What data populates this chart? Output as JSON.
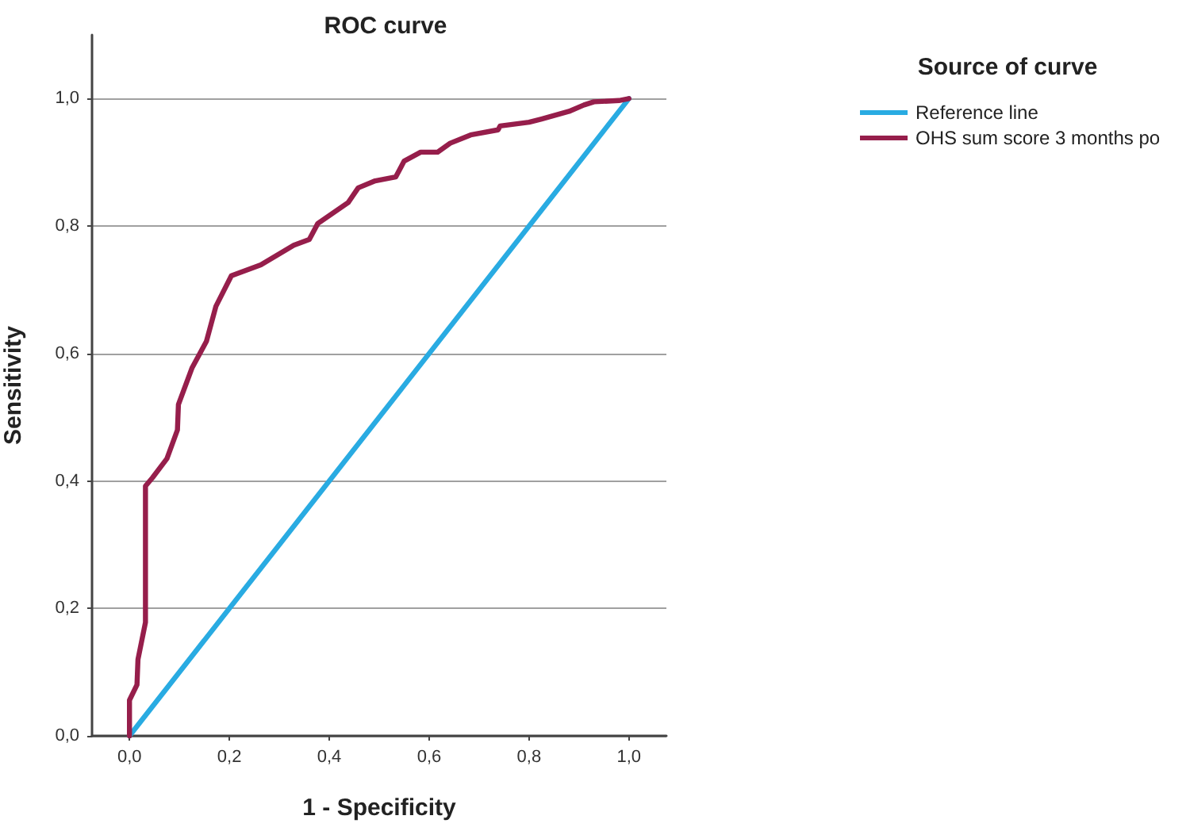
{
  "chart_data": {
    "type": "line",
    "title": "ROC curve",
    "xlabel": "1 - Specificity",
    "ylabel": "Sensitivity",
    "legend_title": "Source of curve",
    "legend": "top right",
    "grid": "y",
    "marker": "none",
    "line_style": "solid",
    "xlim": [
      -0.075,
      1.075
    ],
    "ylim": [
      0,
      1.1
    ],
    "xticks": [
      {
        "value": 0,
        "label": "0,0"
      },
      {
        "value": 0.2,
        "label": "0,2"
      },
      {
        "value": 0.4,
        "label": "0,4"
      },
      {
        "value": 0.6,
        "label": "0,6"
      },
      {
        "value": 0.8,
        "label": "0,8"
      },
      {
        "value": 1,
        "label": "1,0"
      }
    ],
    "yticks": [
      {
        "value": 0,
        "label": "0,0"
      },
      {
        "value": 0.2,
        "label": "0,2"
      },
      {
        "value": 0.4,
        "label": "0,4"
      },
      {
        "value": 0.6,
        "label": "0,6"
      },
      {
        "value": 0.8,
        "label": "0,8"
      },
      {
        "value": 1,
        "label": "1,0"
      }
    ],
    "series": [
      {
        "name": "Reference line",
        "color": "#29abe2",
        "x": [
          0,
          1
        ],
        "values": [
          0,
          1
        ]
      },
      {
        "name": "OHS sum score 3 months po",
        "color": "#961e4b",
        "x": [
          0,
          0,
          0.015,
          0.017,
          0.032,
          0.032,
          0.046,
          0.075,
          0.096,
          0.098,
          0.125,
          0.154,
          0.173,
          0.204,
          0.263,
          0.329,
          0.36,
          0.377,
          0.438,
          0.458,
          0.492,
          0.533,
          0.55,
          0.583,
          0.617,
          0.642,
          0.683,
          0.738,
          0.742,
          0.8,
          0.825,
          0.88,
          0.91,
          0.93,
          0.98,
          1
        ],
        "values": [
          0,
          0.056,
          0.08,
          0.12,
          0.178,
          0.392,
          0.405,
          0.435,
          0.48,
          0.52,
          0.577,
          0.619,
          0.674,
          0.722,
          0.739,
          0.77,
          0.779,
          0.804,
          0.837,
          0.86,
          0.871,
          0.877,
          0.902,
          0.916,
          0.916,
          0.93,
          0.943,
          0.951,
          0.957,
          0.963,
          0.968,
          0.98,
          0.99,
          0.995,
          0.997,
          1
        ]
      }
    ]
  }
}
